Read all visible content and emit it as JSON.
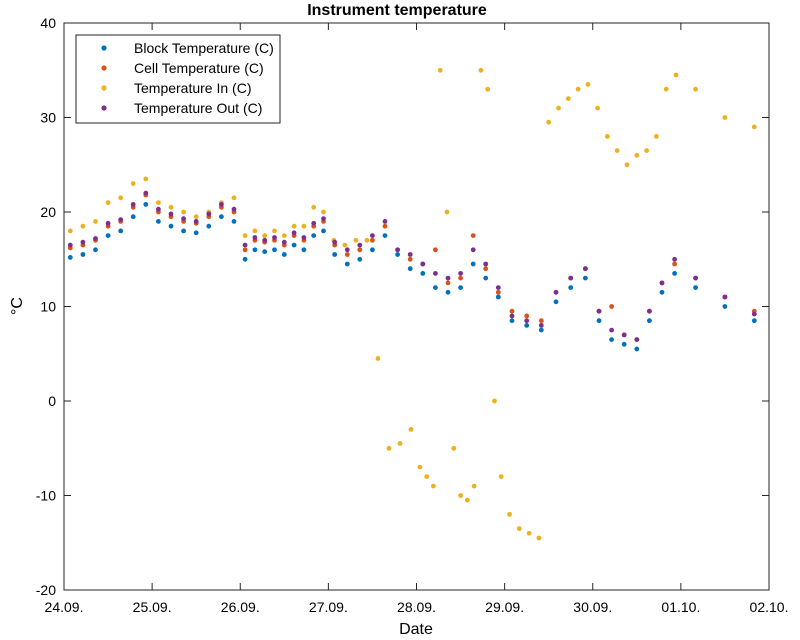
{
  "chart_data": {
    "type": "scatter",
    "title": "Instrument temperature",
    "xlabel": "Date",
    "ylabel": "°C",
    "xlim": [
      "24.09.",
      "02.10."
    ],
    "ylim": [
      -20,
      40
    ],
    "x_ticks": [
      "24.09.",
      "25.09.",
      "26.09.",
      "27.09.",
      "28.09.",
      "29.09.",
      "30.09.",
      "01.10.",
      "02.10."
    ],
    "y_ticks": [
      -20,
      -10,
      0,
      10,
      20,
      30,
      40
    ],
    "grid": false,
    "legend": "top-left",
    "series": [
      {
        "name": "Block Temperature (C)",
        "color": "#0072BD",
        "points": [
          [
            "24.09.",
            15.2
          ],
          [
            "24.09.",
            15.5
          ],
          [
            "24.09.",
            16.0
          ],
          [
            "24.09.",
            17.5
          ],
          [
            "24.09.",
            18.0
          ],
          [
            "24.09.",
            19.5
          ],
          [
            "24.09.",
            20.8
          ],
          [
            "25.09.",
            19.0
          ],
          [
            "25.09.",
            18.5
          ],
          [
            "25.09.",
            18.0
          ],
          [
            "25.09.",
            17.8
          ],
          [
            "25.09.",
            18.5
          ],
          [
            "25.09.",
            19.5
          ],
          [
            "25.09.",
            19.0
          ],
          [
            "26.09.",
            15.0
          ],
          [
            "26.09.",
            16.0
          ],
          [
            "26.09.",
            15.8
          ],
          [
            "26.09.",
            16.0
          ],
          [
            "26.09.",
            15.5
          ],
          [
            "26.09.",
            16.5
          ],
          [
            "26.09.",
            16.0
          ],
          [
            "26.09.",
            17.5
          ],
          [
            "26.09.",
            18.0
          ],
          [
            "27.09.",
            15.5
          ],
          [
            "27.09.",
            14.5
          ],
          [
            "27.09.",
            15.0
          ],
          [
            "27.09.",
            16.0
          ],
          [
            "27.09.",
            17.5
          ],
          [
            "27.09.",
            15.5
          ],
          [
            "27.09.",
            14.0
          ],
          [
            "28.09.",
            13.5
          ],
          [
            "28.09.",
            12.0
          ],
          [
            "28.09.",
            11.5
          ],
          [
            "28.09.",
            12.0
          ],
          [
            "28.09.",
            14.5
          ],
          [
            "28.09.",
            13.0
          ],
          [
            "28.09.",
            11.0
          ],
          [
            "29.09.",
            8.5
          ],
          [
            "29.09.",
            8.0
          ],
          [
            "29.09.",
            7.5
          ],
          [
            "29.09.",
            10.5
          ],
          [
            "29.09.",
            12.0
          ],
          [
            "29.09.",
            13.0
          ],
          [
            "30.09.",
            8.5
          ],
          [
            "30.09.",
            6.5
          ],
          [
            "30.09.",
            6.0
          ],
          [
            "30.09.",
            5.5
          ],
          [
            "30.09.",
            8.5
          ],
          [
            "30.09.",
            11.5
          ],
          [
            "30.09.",
            13.5
          ],
          [
            "01.10.",
            12.0
          ],
          [
            "01.10.",
            10.0
          ],
          [
            "01.10.",
            8.5
          ]
        ]
      },
      {
        "name": "Cell Temperature (C)",
        "color": "#D95319",
        "points": [
          [
            "24.09.",
            16.2
          ],
          [
            "24.09.",
            16.5
          ],
          [
            "24.09.",
            17.0
          ],
          [
            "24.09.",
            18.5
          ],
          [
            "24.09.",
            19.0
          ],
          [
            "24.09.",
            20.5
          ],
          [
            "24.09.",
            21.8
          ],
          [
            "25.09.",
            20.0
          ],
          [
            "25.09.",
            19.5
          ],
          [
            "25.09.",
            19.0
          ],
          [
            "25.09.",
            18.8
          ],
          [
            "25.09.",
            19.5
          ],
          [
            "25.09.",
            20.5
          ],
          [
            "25.09.",
            20.0
          ],
          [
            "26.09.",
            16.0
          ],
          [
            "26.09.",
            17.0
          ],
          [
            "26.09.",
            16.8
          ],
          [
            "26.09.",
            17.0
          ],
          [
            "26.09.",
            16.5
          ],
          [
            "26.09.",
            17.5
          ],
          [
            "26.09.",
            17.0
          ],
          [
            "26.09.",
            18.5
          ],
          [
            "26.09.",
            19.0
          ],
          [
            "27.09.",
            16.5
          ],
          [
            "27.09.",
            15.5
          ],
          [
            "27.09.",
            16.0
          ],
          [
            "27.09.",
            17.0
          ],
          [
            "27.09.",
            18.5
          ],
          [
            "27.09.",
            16.0
          ],
          [
            "27.09.",
            15.0
          ],
          [
            "28.09.",
            14.5
          ],
          [
            "28.09.",
            16.0
          ],
          [
            "28.09.",
            12.5
          ],
          [
            "28.09.",
            13.0
          ],
          [
            "28.09.",
            17.5
          ],
          [
            "28.09.",
            14.0
          ],
          [
            "28.09.",
            11.5
          ],
          [
            "29.09.",
            9.5
          ],
          [
            "29.09.",
            9.0
          ],
          [
            "29.09.",
            8.5
          ],
          [
            "29.09.",
            11.5
          ],
          [
            "29.09.",
            13.0
          ],
          [
            "29.09.",
            14.0
          ],
          [
            "30.09.",
            9.5
          ],
          [
            "30.09.",
            10.0
          ],
          [
            "30.09.",
            7.0
          ],
          [
            "30.09.",
            6.5
          ],
          [
            "30.09.",
            9.5
          ],
          [
            "30.09.",
            12.5
          ],
          [
            "30.09.",
            14.5
          ],
          [
            "01.10.",
            13.0
          ],
          [
            "01.10.",
            11.0
          ],
          [
            "01.10.",
            9.5
          ]
        ]
      },
      {
        "name": "Temperature In (C)",
        "color": "#EDB120",
        "points": [
          [
            "24.09.",
            18.0
          ],
          [
            "24.09.",
            18.5
          ],
          [
            "24.09.",
            19.0
          ],
          [
            "24.09.",
            21.0
          ],
          [
            "24.09.",
            21.5
          ],
          [
            "24.09.",
            23.0
          ],
          [
            "24.09.",
            23.5
          ],
          [
            "25.09.",
            21.0
          ],
          [
            "25.09.",
            20.5
          ],
          [
            "25.09.",
            20.0
          ],
          [
            "25.09.",
            19.5
          ],
          [
            "25.09.",
            20.0
          ],
          [
            "25.09.",
            21.0
          ],
          [
            "25.09.",
            21.5
          ],
          [
            "26.09.",
            17.5
          ],
          [
            "26.09.",
            18.0
          ],
          [
            "26.09.",
            17.5
          ],
          [
            "26.09.",
            18.0
          ],
          [
            "26.09.",
            17.5
          ],
          [
            "26.09.",
            18.5
          ],
          [
            "26.09.",
            18.5
          ],
          [
            "26.09.",
            20.5
          ],
          [
            "26.09.",
            20.0
          ],
          [
            "27.09.",
            17.0
          ],
          [
            "27.09.",
            16.5
          ],
          [
            "27.09.",
            17.0
          ],
          [
            "27.09.",
            17.0
          ],
          [
            "27.09.",
            4.5
          ],
          [
            "27.09.",
            -5.0
          ],
          [
            "27.09.",
            -4.5
          ],
          [
            "27.09.",
            -3.0
          ],
          [
            "28.09.",
            -7.0
          ],
          [
            "28.09.",
            -8.0
          ],
          [
            "28.09.",
            -9.0
          ],
          [
            "28.09.",
            35.0
          ],
          [
            "28.09.",
            20.0
          ],
          [
            "28.09.",
            -5.0
          ],
          [
            "28.09.",
            -10.0
          ],
          [
            "28.09.",
            -10.5
          ],
          [
            "28.09.",
            -9.0
          ],
          [
            "28.09.",
            35.0
          ],
          [
            "28.09.",
            33.0
          ],
          [
            "28.09.",
            0.0
          ],
          [
            "28.09.",
            -8.0
          ],
          [
            "29.09.",
            -12.0
          ],
          [
            "29.09.",
            -13.5
          ],
          [
            "29.09.",
            -14.0
          ],
          [
            "29.09.",
            -14.5
          ],
          [
            "29.09.",
            29.5
          ],
          [
            "29.09.",
            31.0
          ],
          [
            "29.09.",
            32.0
          ],
          [
            "29.09.",
            33.0
          ],
          [
            "29.09.",
            33.5
          ],
          [
            "30.09.",
            31.0
          ],
          [
            "30.09.",
            28.0
          ],
          [
            "30.09.",
            26.5
          ],
          [
            "30.09.",
            25.0
          ],
          [
            "30.09.",
            26.0
          ],
          [
            "30.09.",
            26.5
          ],
          [
            "30.09.",
            28.0
          ],
          [
            "30.09.",
            33.0
          ],
          [
            "30.09.",
            34.5
          ],
          [
            "01.10.",
            33.0
          ],
          [
            "01.10.",
            30.0
          ],
          [
            "01.10.",
            29.0
          ]
        ]
      },
      {
        "name": "Temperature Out (C)",
        "color": "#7E2F8E",
        "points": [
          [
            "24.09.",
            16.5
          ],
          [
            "24.09.",
            16.8
          ],
          [
            "24.09.",
            17.2
          ],
          [
            "24.09.",
            18.8
          ],
          [
            "24.09.",
            19.2
          ],
          [
            "24.09.",
            20.8
          ],
          [
            "24.09.",
            22.0
          ],
          [
            "25.09.",
            20.3
          ],
          [
            "25.09.",
            19.8
          ],
          [
            "25.09.",
            19.3
          ],
          [
            "25.09.",
            19.0
          ],
          [
            "25.09.",
            19.8
          ],
          [
            "25.09.",
            20.8
          ],
          [
            "25.09.",
            20.3
          ],
          [
            "26.09.",
            16.5
          ],
          [
            "26.09.",
            17.3
          ],
          [
            "26.09.",
            17.0
          ],
          [
            "26.09.",
            17.3
          ],
          [
            "26.09.",
            16.8
          ],
          [
            "26.09.",
            17.8
          ],
          [
            "26.09.",
            17.3
          ],
          [
            "26.09.",
            18.8
          ],
          [
            "26.09.",
            19.3
          ],
          [
            "27.09.",
            16.8
          ],
          [
            "27.09.",
            16.0
          ],
          [
            "27.09.",
            16.5
          ],
          [
            "27.09.",
            17.5
          ],
          [
            "27.09.",
            19.0
          ],
          [
            "27.09.",
            16.0
          ],
          [
            "27.09.",
            15.5
          ],
          [
            "28.09.",
            14.5
          ],
          [
            "28.09.",
            13.5
          ],
          [
            "28.09.",
            13.0
          ],
          [
            "28.09.",
            13.5
          ],
          [
            "28.09.",
            16.0
          ],
          [
            "28.09.",
            14.5
          ],
          [
            "28.09.",
            12.0
          ],
          [
            "29.09.",
            9.0
          ],
          [
            "29.09.",
            8.5
          ],
          [
            "29.09.",
            8.0
          ],
          [
            "29.09.",
            11.5
          ],
          [
            "29.09.",
            13.0
          ],
          [
            "29.09.",
            14.0
          ],
          [
            "30.09.",
            9.5
          ],
          [
            "30.09.",
            7.5
          ],
          [
            "30.09.",
            7.0
          ],
          [
            "30.09.",
            6.5
          ],
          [
            "30.09.",
            9.5
          ],
          [
            "30.09.",
            12.5
          ],
          [
            "30.09.",
            15.0
          ],
          [
            "01.10.",
            13.0
          ],
          [
            "01.10.",
            11.0
          ],
          [
            "01.10.",
            9.2
          ]
        ]
      }
    ]
  }
}
